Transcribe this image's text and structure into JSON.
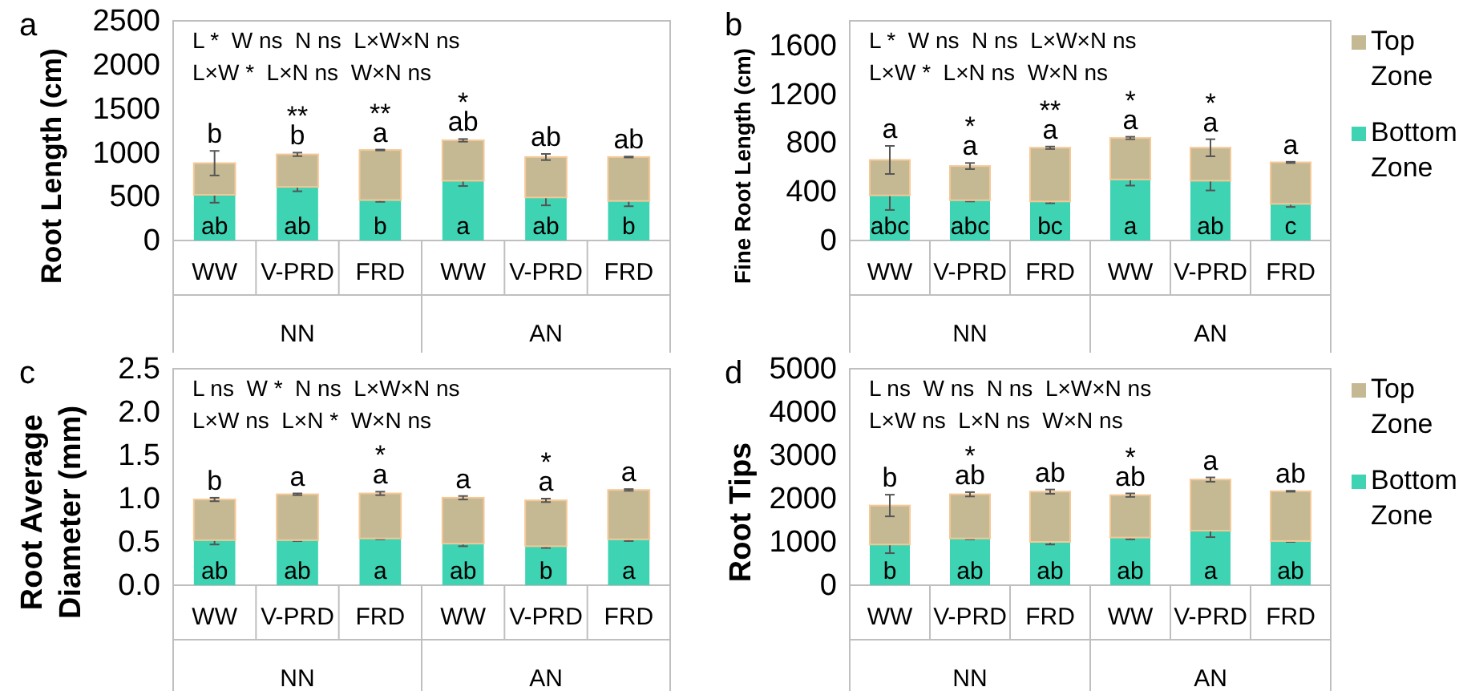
{
  "chart_data": [
    {
      "type": "bar",
      "title": "a",
      "ylabel": "Root Length (cm)",
      "categories": [
        "WW",
        "V-PRD",
        "FRD",
        "WW",
        "V-PRD",
        "FRD"
      ],
      "stacked": true,
      "ylim": [
        0,
        2500
      ],
      "yticks": [
        0,
        500,
        1000,
        1500,
        2000,
        2500
      ],
      "legend": false,
      "annotations": [
        "L *  W ns  N ns  L×W×N ns",
        "L×W *  L×N ns  W×N ns",
        "NN",
        "AN"
      ],
      "series": [
        {
          "color": "#3dd3b3",
          "values": [
            520,
            610,
            460,
            680,
            490,
            450
          ],
          "errors": [
            90,
            50,
            20,
            60,
            90,
            60
          ],
          "value_labels": [
            "ab",
            "ab",
            "b",
            "a",
            "ab",
            "b"
          ]
        },
        {
          "color": "#c5b994",
          "values": [
            360,
            370,
            570,
            460,
            460,
            500
          ],
          "errors": [
            140,
            20,
            5,
            15,
            35,
            5
          ],
          "value_labels": [
            "b",
            "**\nb",
            "**\na",
            "*\nab",
            "ab",
            "ab"
          ]
        }
      ]
    },
    {
      "type": "bar",
      "title": "b",
      "ylabel": "Fine Root Length (cm)",
      "categories": [
        "WW",
        "V-PRD",
        "FRD",
        "WW",
        "V-PRD",
        "FRD"
      ],
      "stacked": true,
      "ylim": [
        0,
        1800
      ],
      "yticks": [
        0,
        400,
        800,
        1200,
        1600
      ],
      "legend": "right",
      "annotations": [
        "L *  W ns  N ns  L×W×N ns",
        "L×W *  L×N ns  W×N ns",
        "NN",
        "AN"
      ],
      "series": [
        {
          "name": "Bottom Zone",
          "color": "#3dd3b3",
          "values": [
            370,
            330,
            320,
            500,
            490,
            300
          ],
          "errors": [
            120,
            10,
            15,
            50,
            80,
            25
          ],
          "value_labels": [
            "abc",
            "abc",
            "bc",
            "a",
            "ab",
            "c"
          ]
        },
        {
          "name": "Top Zone",
          "color": "#c5b994",
          "values": [
            290,
            280,
            440,
            340,
            270,
            340
          ],
          "errors": [
            115,
            25,
            10,
            10,
            70,
            5
          ],
          "value_labels": [
            "a",
            "*\na",
            "**\na",
            "*\na",
            "*\na",
            "a"
          ]
        }
      ]
    },
    {
      "type": "bar",
      "title": "c",
      "ylabel": "Root Average\nDiameter (mm)",
      "categories": [
        "WW",
        "V-PRD",
        "FRD",
        "WW",
        "V-PRD",
        "FRD"
      ],
      "stacked": true,
      "ylim": [
        0,
        2.5
      ],
      "yticks": [
        {
          "value": 0,
          "label": "0.0"
        },
        0.5,
        {
          "value": 1,
          "label": "1.0"
        },
        1.5,
        {
          "value": 2,
          "label": "2.0"
        },
        2.5
      ],
      "legend": false,
      "annotations": [
        "L ns  W *  N ns  L×W×N ns",
        "L×W ns  L×N *  W×N ns",
        "NN",
        "AN"
      ],
      "series": [
        {
          "color": "#3dd3b3",
          "values": [
            0.52,
            0.52,
            0.54,
            0.48,
            0.45,
            0.53
          ],
          "errors": [
            0.05,
            0.01,
            0.01,
            0.03,
            0.02,
            0.02
          ],
          "value_labels": [
            "ab",
            "ab",
            "a",
            "ab",
            "b",
            "a"
          ]
        },
        {
          "color": "#c5b994",
          "values": [
            0.47,
            0.53,
            0.52,
            0.53,
            0.53,
            0.57
          ],
          "errors": [
            0.02,
            0.01,
            0.02,
            0.02,
            0.02,
            0.01
          ],
          "value_labels": [
            "b",
            "a",
            "*\na",
            "a",
            "*\na",
            "a"
          ]
        }
      ]
    },
    {
      "type": "bar",
      "title": "d",
      "ylabel": "Root Tips",
      "categories": [
        "WW",
        "V-PRD",
        "FRD",
        "WW",
        "V-PRD",
        "FRD"
      ],
      "stacked": true,
      "ylim": [
        0,
        5000
      ],
      "yticks": [
        0,
        1000,
        2000,
        3000,
        4000,
        5000
      ],
      "legend": "right",
      "annotations": [
        "L ns  W ns  N ns  L×W×N ns",
        "L×W ns  L×N ns  W×N ns",
        "NN",
        "AN"
      ],
      "series": [
        {
          "name": "Bottom Zone",
          "color": "#3dd3b3",
          "values": [
            940,
            1080,
            1000,
            1100,
            1260,
            1020
          ],
          "errors": [
            200,
            20,
            60,
            40,
            150,
            20
          ],
          "value_labels": [
            "b",
            "ab",
            "ab",
            "ab",
            "a",
            "ab"
          ]
        },
        {
          "name": "Top Zone",
          "color": "#c5b994",
          "values": [
            900,
            1020,
            1160,
            980,
            1180,
            1150
          ],
          "errors": [
            250,
            50,
            50,
            40,
            50,
            10
          ],
          "value_labels": [
            "b",
            "*\nab",
            "ab",
            "*\nab",
            "a",
            "ab"
          ]
        }
      ]
    }
  ]
}
